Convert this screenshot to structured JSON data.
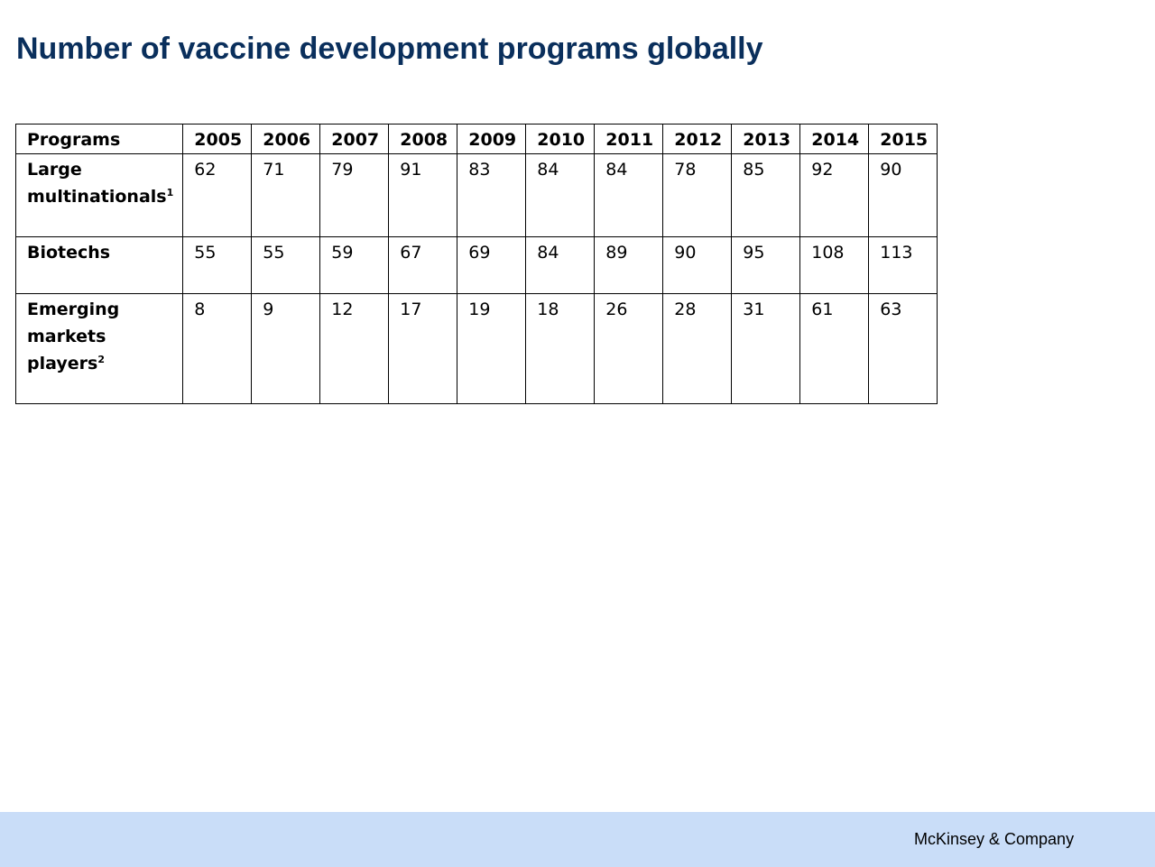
{
  "title": "Number of vaccine development programs globally",
  "table": {
    "corner_label": "Programs",
    "years": [
      "2005",
      "2006",
      "2007",
      "2008",
      "2009",
      "2010",
      "2011",
      "2012",
      "2013",
      "2014",
      "2015"
    ],
    "rows": [
      {
        "label": "Large multinationals",
        "footnote": "1",
        "values": [
          "62",
          "71",
          "79",
          "91",
          "83",
          "84",
          "84",
          "78",
          "85",
          "92",
          "90"
        ]
      },
      {
        "label": "Biotechs",
        "footnote": "",
        "values": [
          "55",
          "55",
          "59",
          "67",
          "69",
          "84",
          "89",
          "90",
          "95",
          "108",
          "113"
        ]
      },
      {
        "label": "Emerging markets players",
        "footnote": "2",
        "values": [
          "8",
          "9",
          "12",
          "17",
          "19",
          "18",
          "26",
          "28",
          "31",
          "61",
          "63"
        ]
      }
    ]
  },
  "footer": {
    "brand": "McKinsey & Company"
  },
  "colors": {
    "title": "#0a2f5c",
    "footer_background": "#c9ddf8"
  }
}
